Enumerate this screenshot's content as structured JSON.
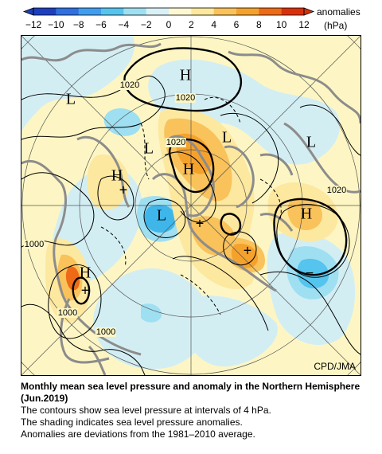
{
  "colorbar": {
    "ticks": [
      "-12",
      "-10",
      "-8",
      "-6",
      "-4",
      "-2",
      "0",
      "2",
      "4",
      "6",
      "8",
      "10",
      "12"
    ],
    "label": "anomalies",
    "unit": "(hPa)",
    "colors": [
      "#1d3fbf",
      "#2f6fe0",
      "#3f9eef",
      "#55c4ee",
      "#9fdff2",
      "#d9f1f6",
      "#fdf8d2",
      "#fde8a0",
      "#f9c25a",
      "#f5a22d",
      "#ee6a17",
      "#d8310a"
    ]
  },
  "map": {
    "pressure_systems": [
      {
        "id": "H1",
        "text": "H"
      },
      {
        "id": "L1",
        "text": "L"
      },
      {
        "id": "L2",
        "text": "L"
      },
      {
        "id": "H2",
        "text": "H"
      },
      {
        "id": "L3",
        "text": "L"
      },
      {
        "id": "H3",
        "text": "H"
      },
      {
        "id": "L4",
        "text": "L"
      },
      {
        "id": "H4",
        "text": "H"
      },
      {
        "id": "L5",
        "text": "L"
      },
      {
        "id": "H5",
        "text": "H"
      }
    ],
    "contour_labels": [
      "1020",
      "1020",
      "1020",
      "1020",
      "1000",
      "1000",
      "1000"
    ],
    "anomaly_signs": [
      "+",
      "+",
      "+",
      "+",
      "−"
    ],
    "credit": "CPD/JMA"
  },
  "caption": {
    "title": "Monthly mean sea level pressure and anomaly in the Northern Hemisphere (Jun.2019)",
    "line1": "The contours show sea level pressure at intervals of 4 hPa.",
    "line2": "The shading indicates sea level pressure anomalies.",
    "line3": "Anomalies are deviations from the 1981–2010 average."
  }
}
